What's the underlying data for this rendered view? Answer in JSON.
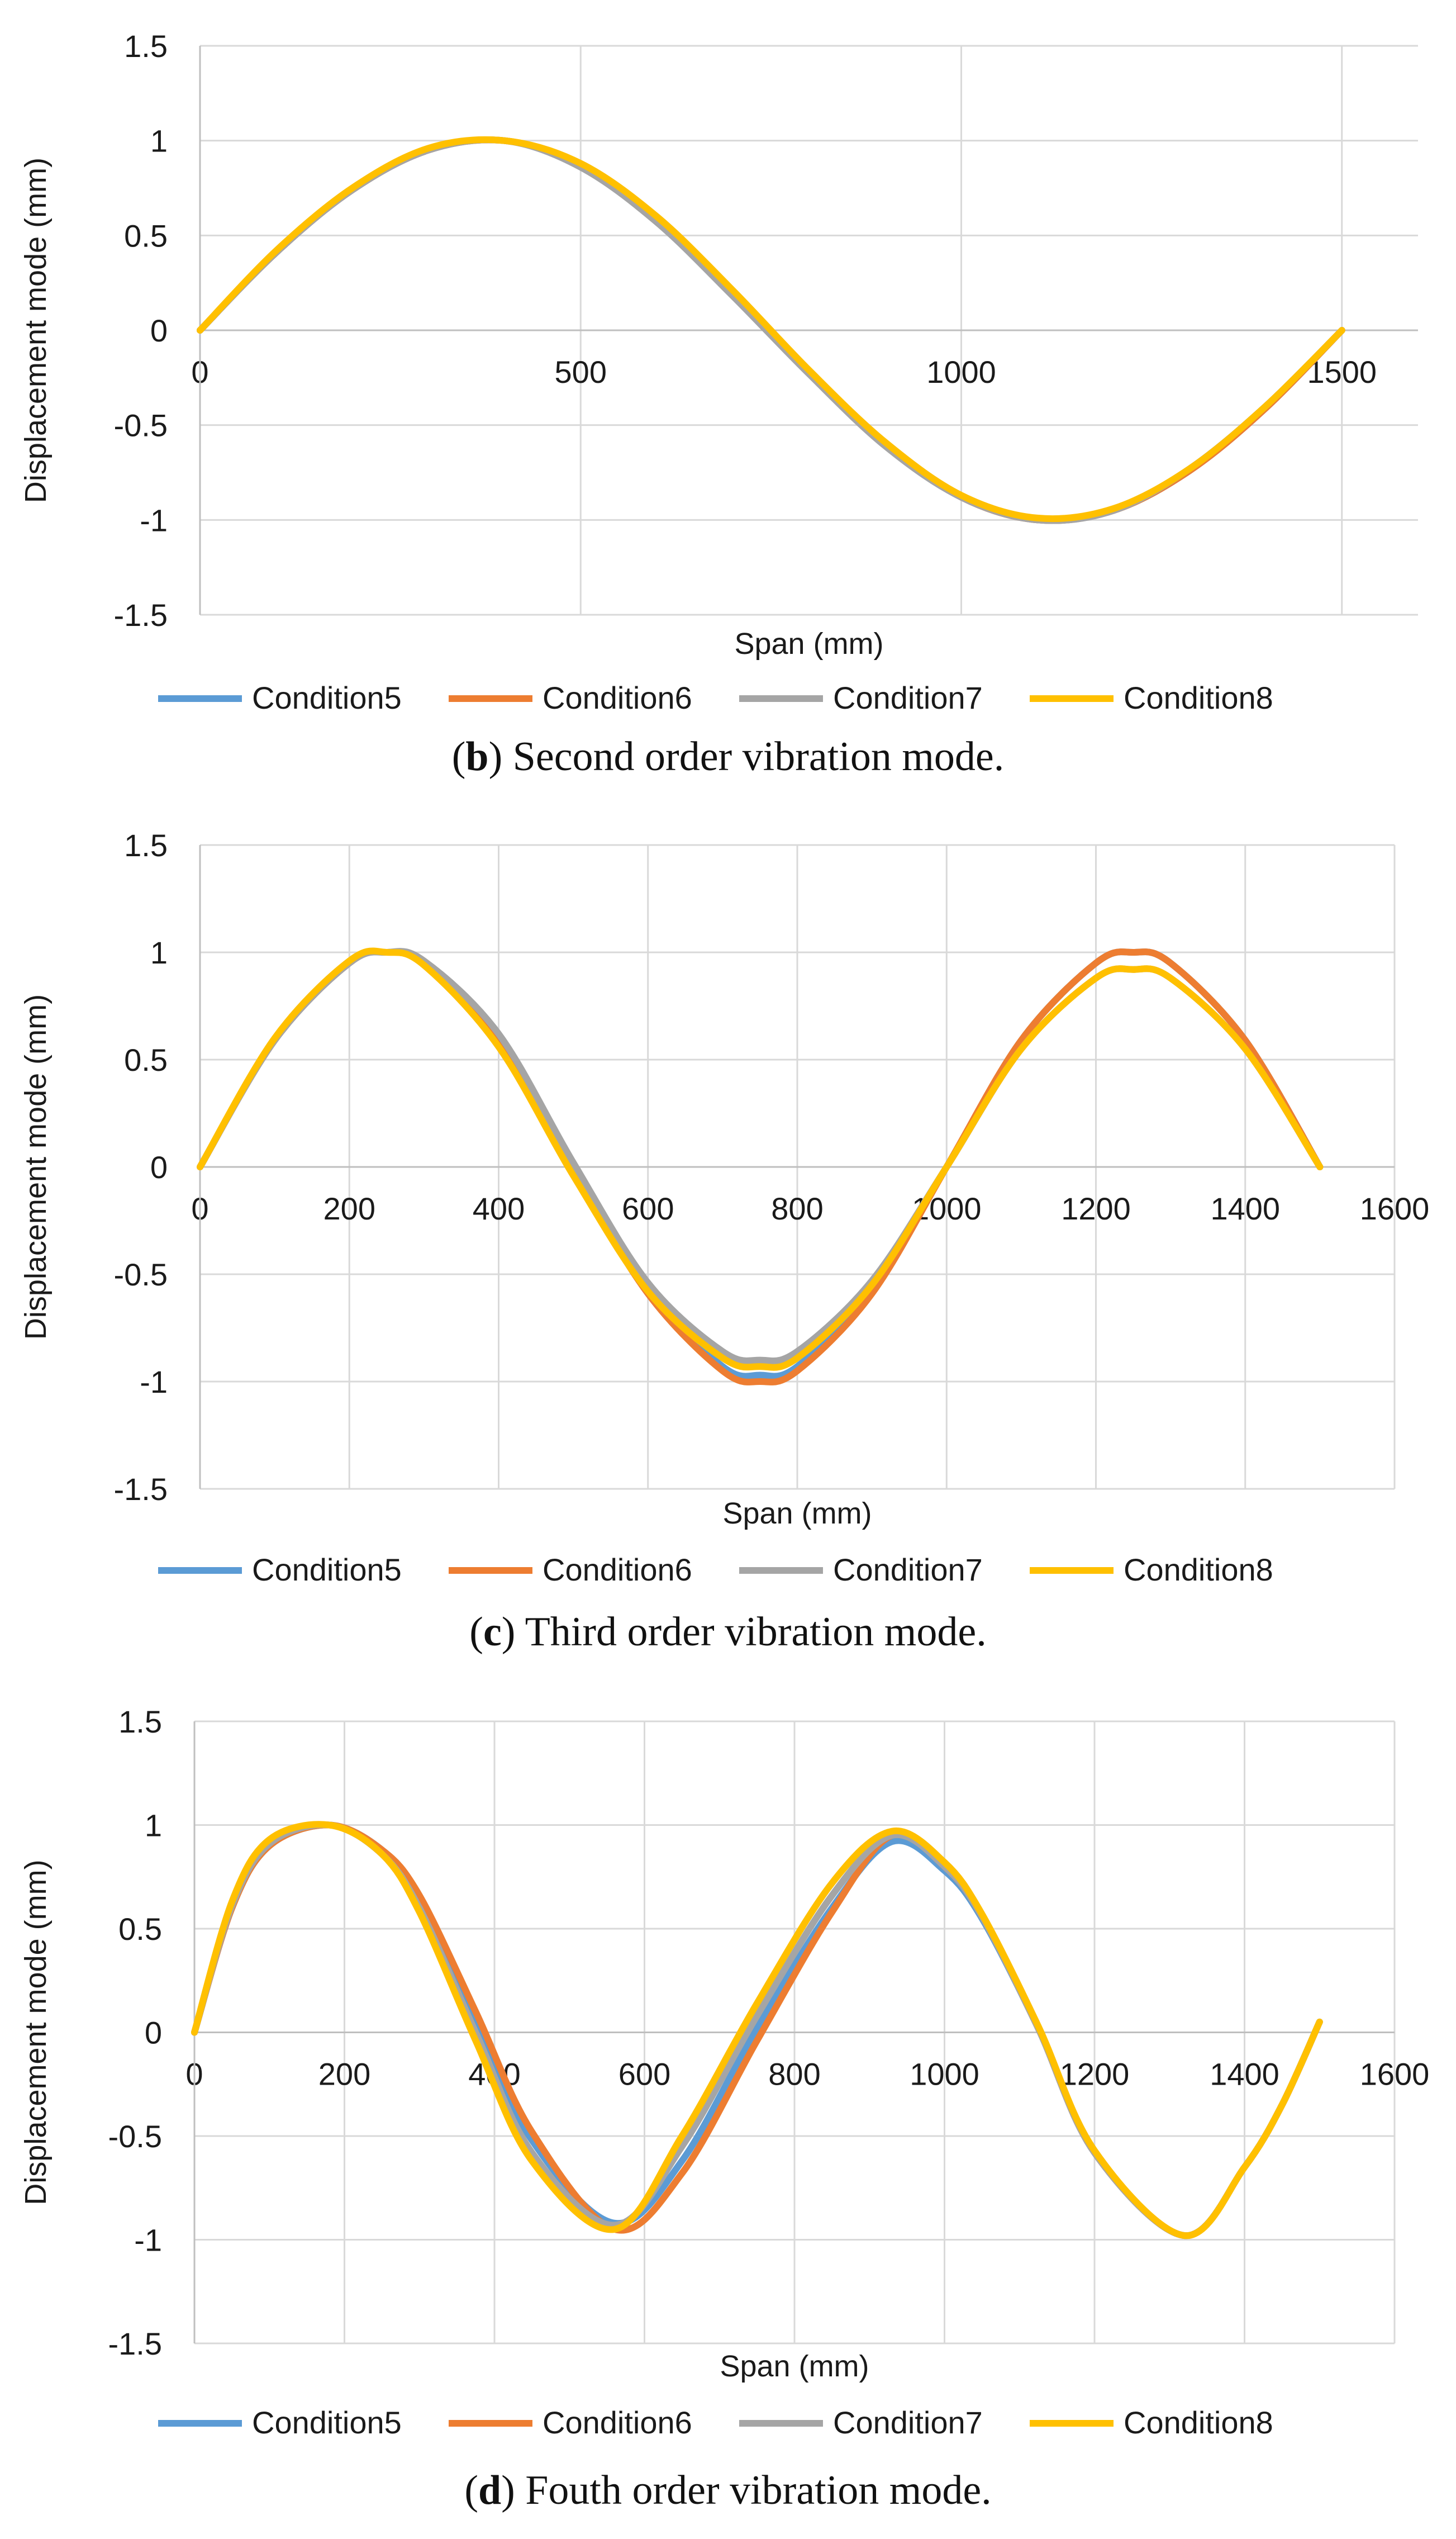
{
  "colors": {
    "Condition5": "#5b9bd5",
    "Condition6": "#ed7d31",
    "Condition7": "#a5a5a5",
    "Condition8": "#ffc000"
  },
  "chart_data": [
    {
      "type": "line",
      "caption_letter": "b",
      "caption_text": ") Second order vibration mode.",
      "xlabel": "Span (mm)",
      "ylabel": "Displacement mode (mm)",
      "xlim": [
        0,
        1600
      ],
      "ylim": [
        -1.5,
        1.5
      ],
      "xticks": [
        0,
        500,
        1000,
        1500
      ],
      "xtick_labels": [
        "0",
        "500",
        "1000",
        "1500"
      ],
      "yticks": [
        1.5,
        1,
        0.5,
        0,
        -0.5,
        -1,
        -1.5
      ],
      "ytick_labels": [
        "1.5",
        "1",
        "0.5",
        "0",
        "-0.5",
        "-1",
        "-1.5"
      ],
      "legend": [
        "Condition5",
        "Condition6",
        "Condition7",
        "Condition8"
      ],
      "x": [
        0,
        100,
        200,
        300,
        400,
        500,
        600,
        700,
        800,
        900,
        1000,
        1100,
        1200,
        1300,
        1400,
        1500
      ],
      "series": [
        {
          "name": "Condition5",
          "values": [
            0,
            0.41,
            0.74,
            0.95,
            1.0,
            0.87,
            0.59,
            0.2,
            -0.22,
            -0.6,
            -0.88,
            -1.0,
            -0.95,
            -0.74,
            -0.41,
            0
          ]
        },
        {
          "name": "Condition6",
          "values": [
            0,
            0.41,
            0.74,
            0.95,
            1.0,
            0.87,
            0.59,
            0.2,
            -0.22,
            -0.6,
            -0.88,
            -1.0,
            -0.95,
            -0.74,
            -0.41,
            0
          ]
        },
        {
          "name": "Condition7",
          "values": [
            0,
            0.41,
            0.74,
            0.95,
            1.0,
            0.86,
            0.57,
            0.18,
            -0.23,
            -0.61,
            -0.88,
            -1.0,
            -0.95,
            -0.73,
            -0.4,
            0
          ]
        },
        {
          "name": "Condition8",
          "values": [
            0,
            0.42,
            0.75,
            0.96,
            1.0,
            0.88,
            0.6,
            0.21,
            -0.21,
            -0.59,
            -0.87,
            -0.99,
            -0.94,
            -0.73,
            -0.4,
            0
          ]
        }
      ]
    },
    {
      "type": "line",
      "caption_letter": "c",
      "caption_text": ") Third order vibration mode.",
      "xlabel": "Span (mm)",
      "ylabel": "Displacement mode (mm)",
      "xlim": [
        0,
        1600
      ],
      "ylim": [
        -1.5,
        1.5
      ],
      "xticks": [
        0,
        200,
        400,
        600,
        800,
        1000,
        1200,
        1400,
        1600
      ],
      "xtick_labels": [
        "0",
        "200",
        "400",
        "600",
        "800",
        "1000",
        "1200",
        "1400",
        "1600"
      ],
      "yticks": [
        1.5,
        1,
        0.5,
        0,
        -0.5,
        -1,
        -1.5
      ],
      "ytick_labels": [
        "1.5",
        "1",
        "0.5",
        "0",
        "-0.5",
        "-1",
        "-1.5"
      ],
      "legend": [
        "Condition5",
        "Condition6",
        "Condition7",
        "Condition8"
      ],
      "x": [
        0,
        100,
        200,
        250,
        300,
        400,
        500,
        600,
        700,
        750,
        800,
        900,
        1000,
        1100,
        1200,
        1250,
        1300,
        1400,
        1500
      ],
      "series": [
        {
          "name": "Condition5",
          "values": [
            0,
            0.59,
            0.95,
            1.0,
            0.95,
            0.59,
            0,
            -0.57,
            -0.93,
            -0.97,
            -0.93,
            -0.57,
            0,
            0.59,
            0.95,
            1.0,
            0.95,
            0.59,
            0
          ]
        },
        {
          "name": "Condition6",
          "values": [
            0,
            0.59,
            0.95,
            1.0,
            0.95,
            0.58,
            -0.02,
            -0.59,
            -0.95,
            -1.0,
            -0.95,
            -0.59,
            0,
            0.59,
            0.95,
            1.0,
            0.95,
            0.59,
            0
          ]
        },
        {
          "name": "Condition7",
          "values": [
            0,
            0.59,
            0.95,
            1.0,
            0.96,
            0.62,
            0.02,
            -0.54,
            -0.86,
            -0.9,
            -0.86,
            -0.53,
            0,
            0.55,
            0.88,
            0.92,
            0.88,
            0.55,
            0
          ]
        },
        {
          "name": "Condition8",
          "values": [
            0,
            0.6,
            0.96,
            1.0,
            0.94,
            0.56,
            -0.04,
            -0.58,
            -0.89,
            -0.93,
            -0.89,
            -0.55,
            0,
            0.55,
            0.88,
            0.92,
            0.88,
            0.55,
            0
          ]
        }
      ]
    },
    {
      "type": "line",
      "caption_letter": "d",
      "caption_text": ") Fouth order vibration mode.",
      "xlabel": "Span (mm)",
      "ylabel": "Displacement mode (mm)",
      "xlim": [
        0,
        1600
      ],
      "ylim": [
        -1.5,
        1.5
      ],
      "xticks": [
        0,
        200,
        400,
        600,
        800,
        1000,
        1200,
        1400,
        1600
      ],
      "xtick_labels": [
        "0",
        "200",
        "400",
        "600",
        "800",
        "1000",
        "1200",
        "1400",
        "1600"
      ],
      "yticks": [
        1.5,
        1,
        0.5,
        0,
        -0.5,
        -1,
        -1.5
      ],
      "ytick_labels": [
        "1.5",
        "1",
        "0.5",
        "0",
        "-0.5",
        "-1",
        "-1.5"
      ],
      "legend": [
        "Condition5",
        "Condition6",
        "Condition7",
        "Condition8"
      ],
      "x": [
        0,
        50,
        100,
        180,
        250,
        300,
        375,
        450,
        560,
        650,
        750,
        850,
        930,
        1000,
        1050,
        1125,
        1200,
        1320,
        1400,
        1450,
        1500
      ],
      "series": [
        {
          "name": "Condition5",
          "values": [
            0,
            0.6,
            0.9,
            1.0,
            0.88,
            0.65,
            0.06,
            -0.52,
            -0.92,
            -0.62,
            0.02,
            0.6,
            0.92,
            0.78,
            0.55,
            0.02,
            -0.58,
            -0.98,
            -0.65,
            -0.35,
            0.05
          ]
        },
        {
          "name": "Condition6",
          "values": [
            0,
            0.6,
            0.9,
            1.0,
            0.88,
            0.66,
            0.1,
            -0.48,
            -0.95,
            -0.68,
            -0.04,
            0.58,
            0.95,
            0.8,
            0.56,
            0.02,
            -0.58,
            -0.98,
            -0.65,
            -0.35,
            0.05
          ]
        },
        {
          "name": "Condition7",
          "values": [
            0,
            0.61,
            0.91,
            1.0,
            0.86,
            0.6,
            0.0,
            -0.58,
            -0.93,
            -0.55,
            0.08,
            0.66,
            0.95,
            0.8,
            0.56,
            0.02,
            -0.58,
            -0.98,
            -0.65,
            -0.35,
            0.05
          ]
        },
        {
          "name": "Condition8",
          "values": [
            0,
            0.63,
            0.93,
            1.0,
            0.86,
            0.58,
            -0.04,
            -0.62,
            -0.95,
            -0.5,
            0.14,
            0.72,
            0.97,
            0.82,
            0.57,
            0.03,
            -0.57,
            -0.98,
            -0.65,
            -0.35,
            0.05
          ]
        }
      ]
    }
  ]
}
